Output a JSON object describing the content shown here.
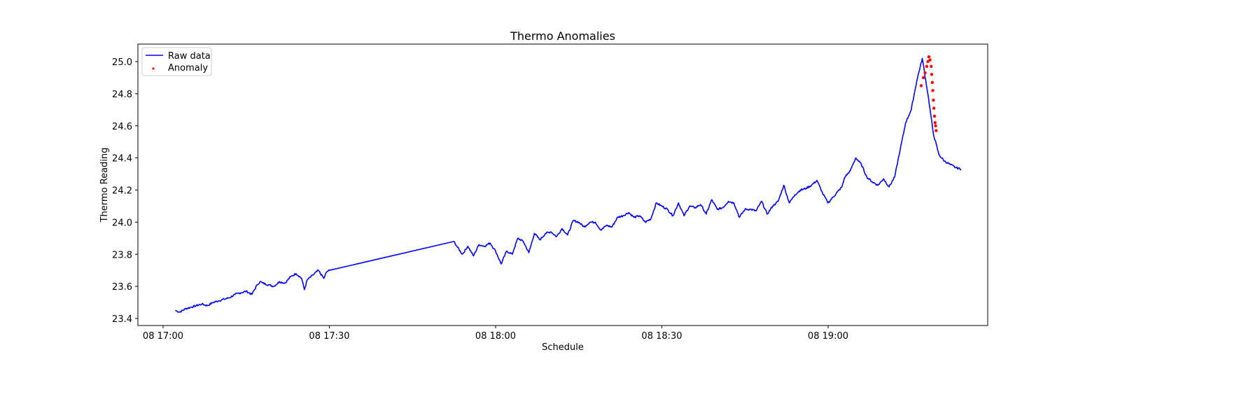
{
  "chart_data": {
    "type": "line",
    "title": "Thermo Anomalies",
    "xlabel": "Schedule",
    "ylabel": "Thermo Reading",
    "x_tick_labels": [
      "08 17:00",
      "08 17:30",
      "08 18:00",
      "08 18:30",
      "08 19:00"
    ],
    "y_tick_labels": [
      "23.4",
      "23.6",
      "23.8",
      "24.0",
      "24.2",
      "24.4",
      "24.6",
      "24.8",
      "25.0"
    ],
    "ylim": [
      23.35,
      25.11
    ],
    "xlim_minutes_from_1700": [
      -4.5,
      148.5
    ],
    "grid": false,
    "legend": {
      "position": "upper left",
      "entries": [
        {
          "label": "Raw data",
          "marker": "line",
          "color": "#0000ff"
        },
        {
          "label": "Anomaly",
          "marker": "dot",
          "color": "#ff0000"
        }
      ]
    },
    "series": [
      {
        "name": "Raw data",
        "color": "#0000ff",
        "x_minutes_from_1700": [
          2.2,
          3,
          4,
          5,
          6,
          7,
          8,
          9,
          10,
          11,
          12,
          13,
          14,
          15,
          16,
          17,
          17.5,
          18,
          19,
          20,
          21,
          22,
          23,
          24,
          25,
          25.5,
          26,
          27,
          28,
          29,
          29.5,
          30,
          52.5,
          53,
          54,
          55,
          56,
          57,
          58,
          59,
          60,
          61,
          62,
          63,
          64,
          65,
          66,
          67,
          68,
          69,
          70,
          71,
          72,
          73,
          74,
          75,
          76,
          77,
          78,
          79,
          80,
          81,
          82,
          83,
          84,
          85,
          86,
          87,
          88,
          89,
          90,
          91,
          92,
          93,
          94,
          95,
          96,
          97,
          98,
          99,
          100,
          101,
          102,
          103,
          104,
          105,
          106,
          107,
          108,
          109,
          110,
          111,
          112,
          113,
          114,
          115,
          116,
          117,
          118,
          119,
          120,
          122.5,
          123,
          124,
          125,
          126,
          127,
          128,
          129,
          130,
          131,
          132,
          133,
          134,
          135,
          136,
          137,
          138,
          139,
          140,
          141,
          142,
          143,
          144,
          145,
          146
        ],
        "values": [
          23.45,
          23.44,
          23.46,
          23.47,
          23.48,
          23.49,
          23.48,
          23.5,
          23.51,
          23.52,
          23.53,
          23.55,
          23.56,
          23.57,
          23.55,
          23.61,
          23.63,
          23.62,
          23.61,
          23.6,
          23.63,
          23.62,
          23.66,
          23.68,
          23.65,
          23.58,
          23.64,
          23.67,
          23.7,
          23.65,
          23.69,
          23.7,
          23.88,
          23.85,
          23.8,
          23.85,
          23.79,
          23.86,
          23.85,
          23.87,
          23.82,
          23.74,
          23.82,
          23.8,
          23.9,
          23.88,
          23.81,
          23.93,
          23.89,
          23.93,
          23.94,
          23.91,
          23.96,
          23.92,
          24.01,
          24.0,
          23.97,
          24.0,
          24.0,
          23.95,
          23.98,
          23.97,
          24.03,
          24.04,
          24.06,
          24.03,
          24.04,
          24.0,
          24.02,
          24.12,
          24.1,
          24.08,
          24.04,
          24.12,
          24.04,
          24.1,
          24.09,
          24.11,
          24.05,
          24.14,
          24.08,
          24.09,
          24.13,
          24.12,
          24.03,
          24.08,
          24.08,
          24.07,
          24.13,
          24.05,
          24.1,
          24.13,
          24.23,
          24.12,
          24.17,
          24.2,
          24.21,
          24.23,
          24.26,
          24.18,
          24.12,
          24.22,
          24.28,
          24.32,
          24.4,
          24.36,
          24.28,
          24.25,
          24.23,
          24.27,
          24.22,
          24.28,
          24.45,
          24.62,
          24.7,
          24.88,
          25.02,
          24.8,
          24.55,
          24.42,
          24.38,
          24.36,
          24.34,
          24.33
        ]
      },
      {
        "name": "Anomaly",
        "color": "#ff0000",
        "type": "scatter",
        "x_minutes_from_1700": [
          136.8,
          137.2,
          137.5,
          137.8,
          138.0,
          138.2,
          138.4,
          138.6,
          138.7,
          138.8,
          138.9,
          139.0,
          139.1,
          139.2,
          139.3,
          139.4,
          139.5
        ],
        "values": [
          24.85,
          24.9,
          24.93,
          24.97,
          25.0,
          25.03,
          25.01,
          24.97,
          24.92,
          24.87,
          24.82,
          24.76,
          24.71,
          24.66,
          24.62,
          24.6,
          24.57
        ]
      }
    ]
  }
}
